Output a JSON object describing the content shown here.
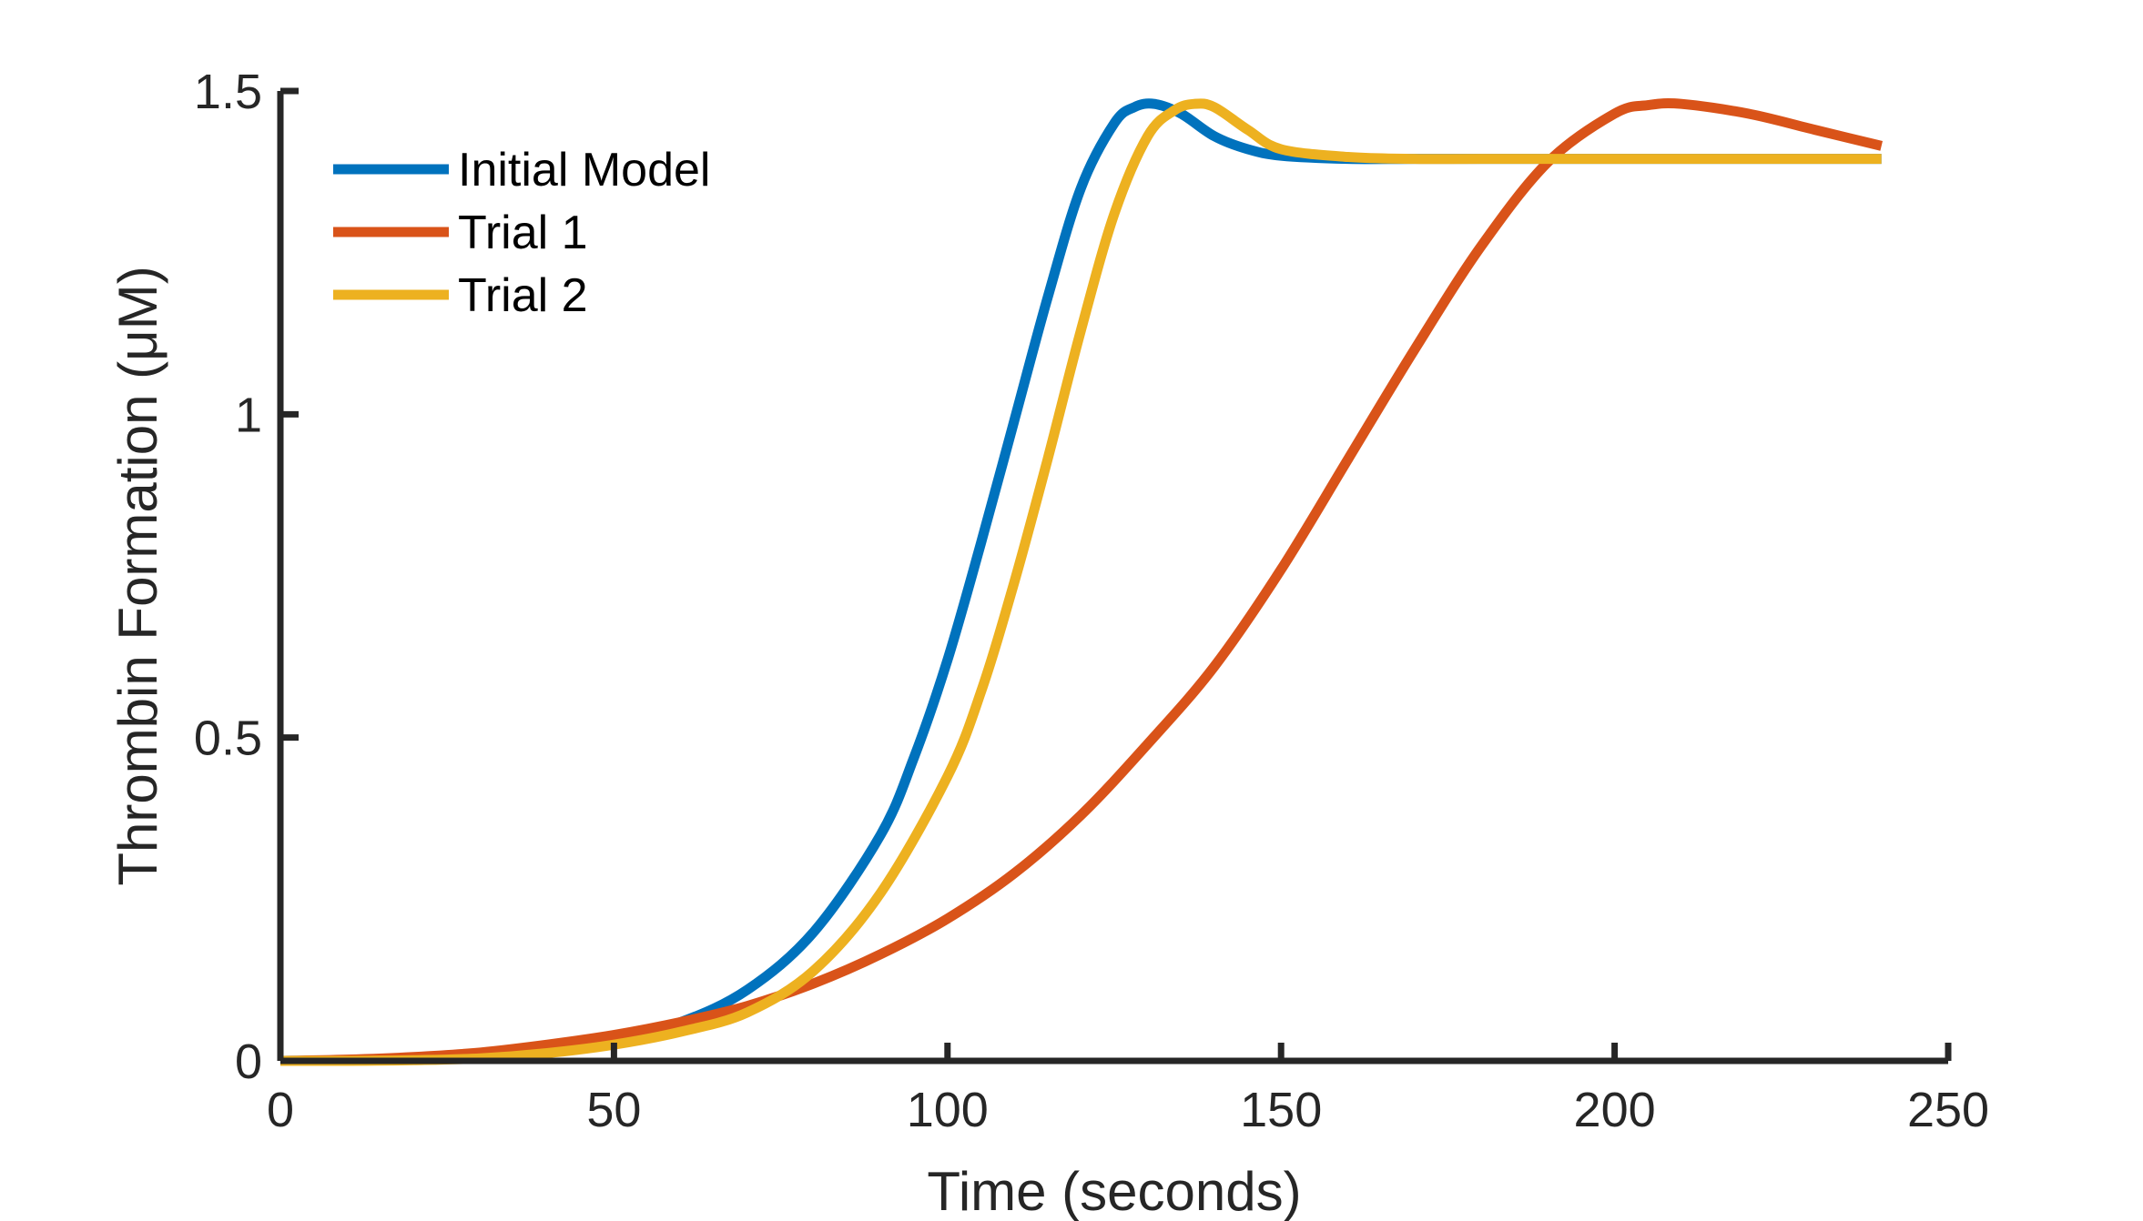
{
  "chart_data": {
    "type": "line",
    "xlabel": "Time (seconds)",
    "ylabel": "Thrombin Formation (μM)",
    "xlim": [
      0,
      250
    ],
    "ylim": [
      0,
      1.5
    ],
    "xticks": [
      0,
      50,
      100,
      150,
      200,
      250
    ],
    "xtick_labels": [
      "0",
      "50",
      "100",
      "150",
      "200",
      "250"
    ],
    "yticks": [
      0,
      0.5,
      1,
      1.5
    ],
    "ytick_labels": [
      "0",
      "0.5",
      "1",
      "1.5"
    ],
    "grid": false,
    "legend_position": "top-left",
    "series": [
      {
        "name": "Initial Model",
        "color": "#0072BD",
        "x": [
          0,
          10,
          20,
          30,
          40,
          50,
          60,
          70,
          80,
          90,
          95,
          100,
          105,
          110,
          115,
          120,
          125,
          128,
          131,
          135,
          140,
          145,
          150,
          160,
          170,
          180,
          200,
          220,
          240
        ],
        "y": [
          0,
          0.001,
          0.004,
          0.01,
          0.02,
          0.035,
          0.06,
          0.11,
          0.2,
          0.35,
          0.47,
          0.62,
          0.8,
          0.99,
          1.18,
          1.35,
          1.45,
          1.475,
          1.48,
          1.465,
          1.43,
          1.41,
          1.4,
          1.395,
          1.395,
          1.395,
          1.395,
          1.395,
          1.395
        ]
      },
      {
        "name": "Trial 1",
        "color": "#D95319",
        "x": [
          0,
          10,
          20,
          30,
          40,
          50,
          60,
          70,
          80,
          90,
          100,
          110,
          120,
          130,
          140,
          150,
          160,
          170,
          180,
          190,
          200,
          205,
          210,
          220,
          230,
          240
        ],
        "y": [
          0,
          0.002,
          0.006,
          0.013,
          0.025,
          0.04,
          0.06,
          0.085,
          0.12,
          0.165,
          0.22,
          0.29,
          0.38,
          0.49,
          0.61,
          0.76,
          0.93,
          1.1,
          1.26,
          1.39,
          1.465,
          1.478,
          1.48,
          1.465,
          1.44,
          1.415
        ]
      },
      {
        "name": "Trial 2",
        "color": "#EDB120",
        "x": [
          0,
          10,
          20,
          30,
          40,
          50,
          60,
          70,
          80,
          90,
          100,
          105,
          110,
          115,
          120,
          125,
          130,
          134,
          137,
          140,
          145,
          150,
          160,
          170,
          180,
          200,
          220,
          240
        ],
        "y": [
          0,
          0,
          0.001,
          0.004,
          0.012,
          0.025,
          0.045,
          0.075,
          0.14,
          0.26,
          0.44,
          0.57,
          0.74,
          0.93,
          1.13,
          1.31,
          1.43,
          1.47,
          1.48,
          1.475,
          1.44,
          1.41,
          1.398,
          1.395,
          1.395,
          1.395,
          1.395,
          1.395
        ]
      }
    ]
  }
}
